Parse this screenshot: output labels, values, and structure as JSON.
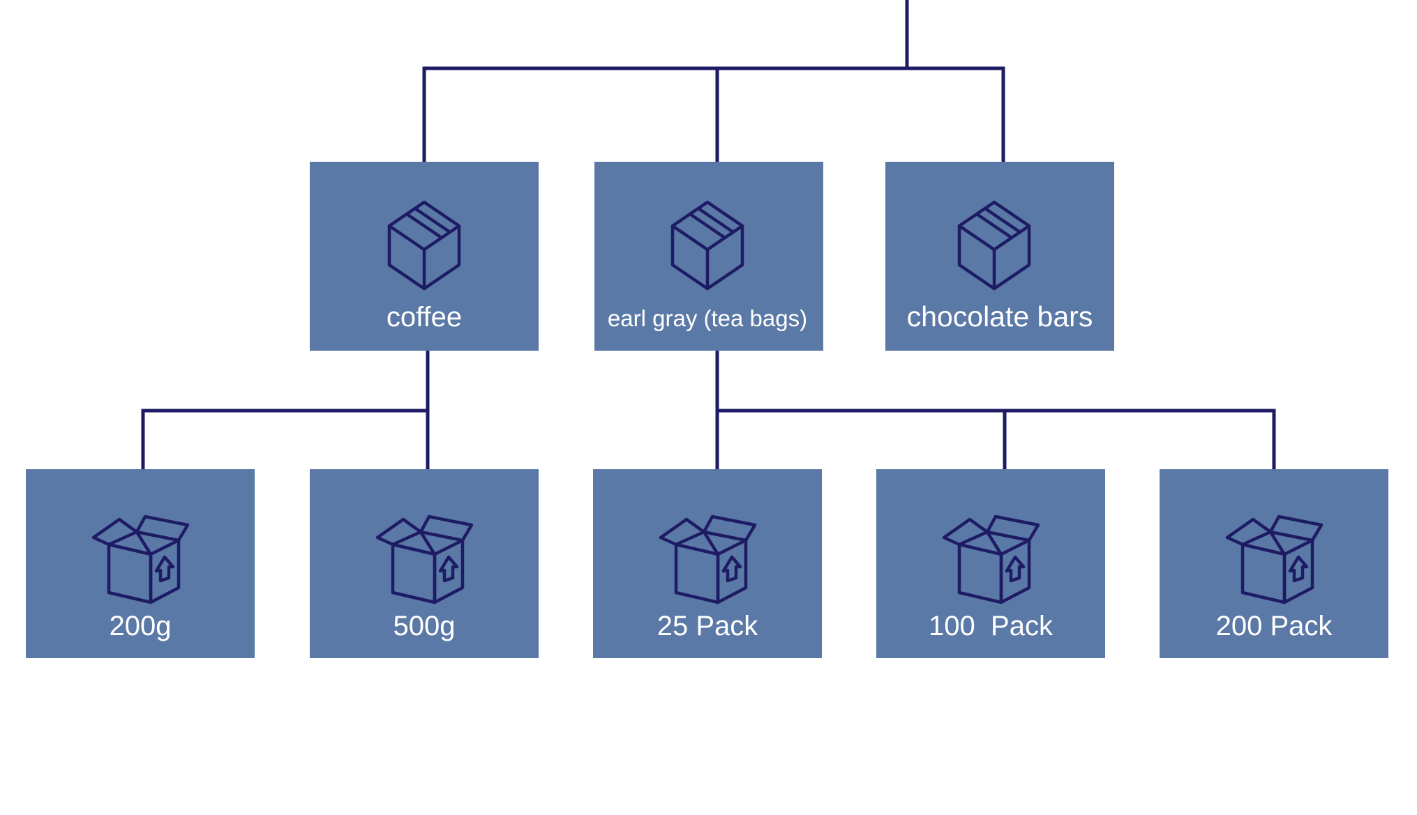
{
  "colors": {
    "node_fill": "#5b79a6",
    "connector": "#1e1b65",
    "icon_stroke": "#1e1b65",
    "label": "#ffffff",
    "background": "#ffffff"
  },
  "categories": [
    {
      "id": "coffee",
      "label": "coffee",
      "icon": "closed-box-icon"
    },
    {
      "id": "earl-gray",
      "label": "earl gray (tea bags)",
      "icon": "closed-box-icon"
    },
    {
      "id": "chocolate",
      "label": "chocolate bars",
      "icon": "closed-box-icon"
    }
  ],
  "variants": [
    {
      "id": "coffee-200g",
      "parent": "coffee",
      "label": "200g",
      "icon": "open-box-up-arrow-icon"
    },
    {
      "id": "coffee-500g",
      "parent": "coffee",
      "label": "500g",
      "icon": "open-box-up-arrow-icon"
    },
    {
      "id": "tea-25",
      "parent": "earl-gray",
      "label": "25 Pack",
      "icon": "open-box-up-arrow-icon"
    },
    {
      "id": "tea-100",
      "parent": "earl-gray",
      "label": "100  Pack",
      "icon": "open-box-up-arrow-icon"
    },
    {
      "id": "tea-200",
      "parent": "earl-gray",
      "label": "200 Pack",
      "icon": "open-box-up-arrow-icon"
    }
  ]
}
